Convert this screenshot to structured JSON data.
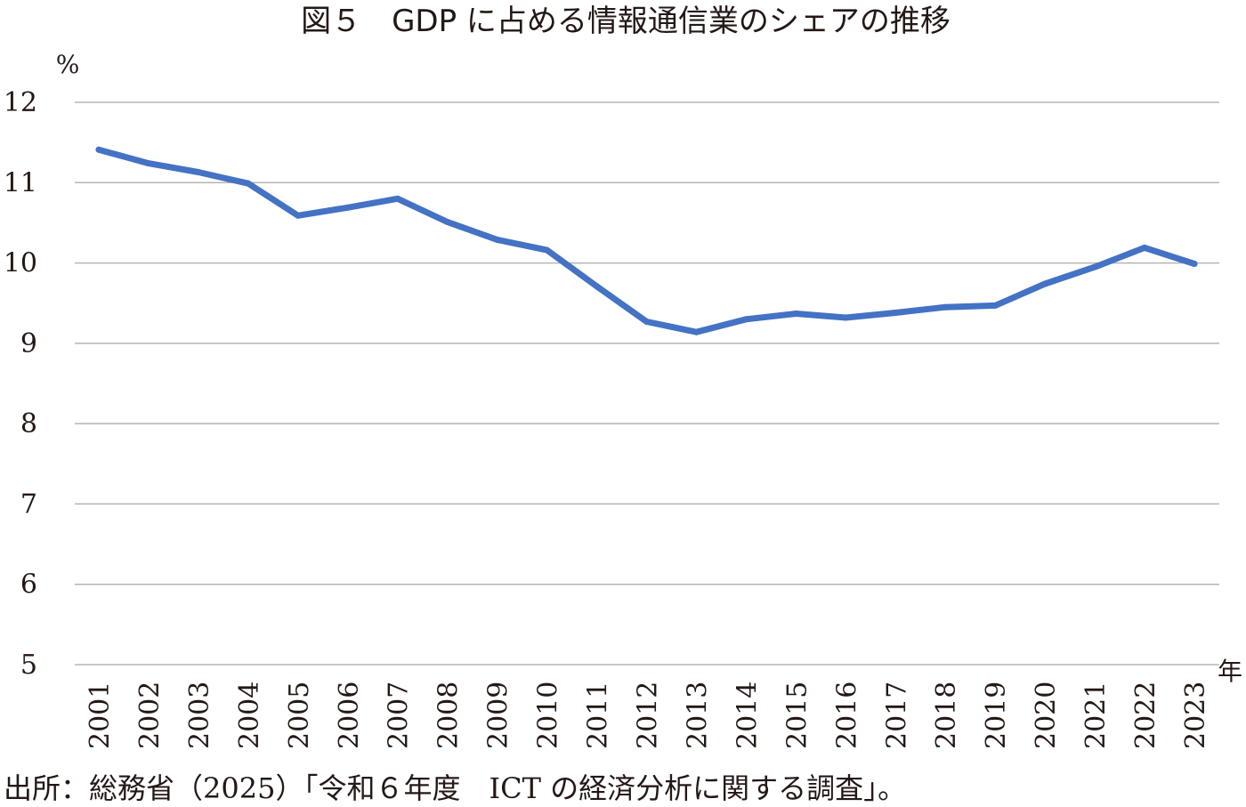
{
  "chart_data": {
    "type": "line",
    "title": "図５　GDP に占める情報通信業のシェアの推移",
    "xlabel": "年",
    "ylabel": "%",
    "ylim": [
      5,
      12
    ],
    "yticks": [
      "5",
      "6",
      "7",
      "8",
      "9",
      "10",
      "11",
      "12"
    ],
    "grid": true,
    "legend": "none",
    "x": [
      "2001",
      "2002",
      "2003",
      "2004",
      "2005",
      "2006",
      "2007",
      "2008",
      "2009",
      "2010",
      "2011",
      "2012",
      "2013",
      "2014",
      "2015",
      "2016",
      "2017",
      "2018",
      "2019",
      "2020",
      "2021",
      "2022",
      "2023"
    ],
    "series": [
      {
        "name": "情報通信業のシェア",
        "color": "#4472c4",
        "values": [
          11.41,
          11.24,
          11.13,
          10.99,
          10.59,
          10.69,
          10.8,
          10.51,
          10.29,
          10.16,
          9.71,
          9.27,
          9.14,
          9.3,
          9.37,
          9.32,
          9.38,
          9.45,
          9.47,
          9.74,
          9.95,
          10.19,
          9.99
        ]
      }
    ],
    "source": "出所：総務省（2025）「令和６年度　ICT の経済分析に関する調査」。"
  }
}
